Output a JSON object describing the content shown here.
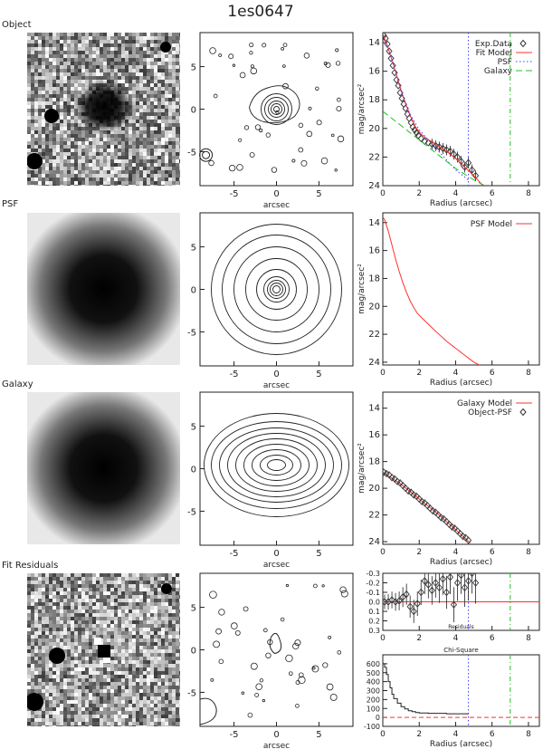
{
  "figure_title": "1es0647",
  "panels": [
    {
      "label": "Object"
    },
    {
      "label": "PSF"
    },
    {
      "label": "Galaxy"
    },
    {
      "label": "Fit Residuals"
    }
  ],
  "contour_axis": {
    "xlabel": "arcsec",
    "ticks": [
      -5,
      0,
      5
    ]
  },
  "colors": {
    "model": "#ff3030",
    "psf_line": "#4040ff",
    "galaxy_line": "#20c020",
    "data_marker": "#333333"
  },
  "chart_data": [
    {
      "type": "scatter",
      "id": "object-profile",
      "xlabel": "Radius (arcsec)",
      "ylabel": "mag/arcsec²",
      "xlim": [
        0,
        8.6
      ],
      "ylim": [
        24,
        13.3
      ],
      "xticks": [
        0,
        2,
        4,
        6,
        8
      ],
      "yticks": [
        14,
        16,
        18,
        20,
        22,
        24
      ],
      "legend_position": "top-right",
      "series": [
        {
          "name": "Exp.Data",
          "style": "diamond",
          "x": [
            0.05,
            0.15,
            0.25,
            0.35,
            0.45,
            0.55,
            0.65,
            0.75,
            0.85,
            0.95,
            1.05,
            1.15,
            1.25,
            1.35,
            1.45,
            1.55,
            1.65,
            1.75,
            1.85,
            1.95,
            2.1,
            2.3,
            2.5,
            2.7,
            2.9,
            3.1,
            3.3,
            3.5,
            3.7,
            3.9,
            4.1,
            4.3,
            4.5,
            4.7,
            4.9,
            5.1
          ],
          "y": [
            13.5,
            13.7,
            14.1,
            14.6,
            15.1,
            15.6,
            16.1,
            16.6,
            17.0,
            17.5,
            17.9,
            18.3,
            18.6,
            19.0,
            19.3,
            19.6,
            19.9,
            20.1,
            20.3,
            20.5,
            20.7,
            20.9,
            21.0,
            21.1,
            21.2,
            21.3,
            21.4,
            21.5,
            21.6,
            21.8,
            22.0,
            22.3,
            22.7,
            22.4,
            22.9,
            23.3
          ]
        },
        {
          "name": "Fit Model",
          "style": "solid",
          "x": [
            0,
            0.3,
            0.6,
            0.9,
            1.2,
            1.5,
            1.8,
            2.1,
            2.4,
            2.7,
            3.0,
            3.5,
            4.0,
            4.5,
            5.0,
            5.5
          ],
          "y": [
            13.4,
            14.4,
            15.6,
            16.9,
            18.1,
            19.1,
            19.9,
            20.4,
            20.7,
            20.95,
            21.2,
            21.6,
            22.1,
            22.7,
            23.3,
            24.0
          ]
        },
        {
          "name": "PSF",
          "style": "dotted",
          "x": [
            0,
            0.5,
            1.0,
            1.5,
            2.0,
            2.5,
            3.0,
            3.5,
            4.0,
            4.7
          ],
          "y": [
            13.5,
            15.2,
            17.4,
            19.0,
            20.1,
            20.8,
            21.5,
            22.2,
            22.9,
            23.6
          ]
        },
        {
          "name": "Galaxy",
          "style": "dashed",
          "x": [
            0,
            1,
            2,
            3,
            4,
            5,
            5.6
          ],
          "y": [
            18.8,
            19.8,
            20.8,
            21.8,
            22.8,
            23.6,
            24.0
          ]
        }
      ],
      "vlines": [
        {
          "x": 4.7,
          "style": "dotted"
        },
        {
          "x": 7.0,
          "style": "dashdot"
        }
      ]
    },
    {
      "type": "line",
      "id": "psf-profile",
      "xlabel": "Radius (arcsec)",
      "ylabel": "mag/arcsec²",
      "xlim": [
        0,
        8.6
      ],
      "ylim": [
        24.2,
        13.3
      ],
      "xticks": [
        0,
        2,
        4,
        6,
        8
      ],
      "yticks": [
        14,
        16,
        18,
        20,
        22,
        24
      ],
      "legend_position": "top-right",
      "series": [
        {
          "name": "PSF Model",
          "style": "solid",
          "x": [
            0,
            0.1,
            0.3,
            0.5,
            0.7,
            0.9,
            1.1,
            1.3,
            1.5,
            1.7,
            1.9,
            2.2,
            2.6,
            3.0,
            3.5,
            4.0,
            4.5,
            5.0,
            5.3
          ],
          "y": [
            13.6,
            13.8,
            14.6,
            15.6,
            16.6,
            17.5,
            18.3,
            19.0,
            19.6,
            20.1,
            20.5,
            20.9,
            21.4,
            21.9,
            22.5,
            23.0,
            23.5,
            24.0,
            24.2
          ]
        }
      ]
    },
    {
      "type": "scatter",
      "id": "galaxy-profile",
      "xlabel": "Radius (arcsec)",
      "ylabel": "mag/arcsec²",
      "xlim": [
        0,
        8.6
      ],
      "ylim": [
        24.2,
        12.8
      ],
      "xticks": [
        0,
        2,
        4,
        6,
        8
      ],
      "yticks": [
        14,
        16,
        18,
        20,
        22,
        24
      ],
      "legend_position": "top-right",
      "series": [
        {
          "name": "Galaxy Model",
          "style": "solid",
          "x": [
            0,
            1,
            2,
            3,
            4,
            4.8
          ],
          "y": [
            18.8,
            19.7,
            20.8,
            21.9,
            23.1,
            24.1
          ]
        },
        {
          "name": "Object-PSF",
          "style": "diamond",
          "x": [
            0.05,
            0.2,
            0.35,
            0.5,
            0.65,
            0.8,
            0.95,
            1.1,
            1.25,
            1.4,
            1.55,
            1.7,
            1.85,
            2.0,
            2.15,
            2.3,
            2.45,
            2.6,
            2.75,
            2.9,
            3.05,
            3.2,
            3.35,
            3.5,
            3.65,
            3.8,
            3.95,
            4.1,
            4.25,
            4.4,
            4.55,
            4.7
          ],
          "y": [
            18.8,
            18.9,
            19.0,
            19.2,
            19.3,
            19.5,
            19.6,
            19.8,
            20.0,
            20.2,
            20.3,
            20.5,
            20.6,
            20.8,
            21.0,
            21.1,
            21.3,
            21.5,
            21.7,
            21.8,
            22.0,
            22.2,
            22.3,
            22.5,
            22.7,
            22.9,
            23.0,
            23.2,
            23.4,
            23.6,
            23.7,
            23.9
          ]
        }
      ]
    },
    {
      "type": "scatter",
      "id": "residuals",
      "xlim": [
        0,
        8.6
      ],
      "ylim": [
        0.3,
        -0.3
      ],
      "xticks": [
        0,
        2,
        4,
        6,
        8
      ],
      "yticks": [
        -0.3,
        -0.2,
        -0.1,
        0.0,
        0.1,
        0.2,
        0.3
      ],
      "ytick_labels": [
        "-0.3",
        "-0.2",
        "-0.1",
        "0.0",
        "0.1",
        "0.2",
        "0.3"
      ],
      "inner_label": "Residuals",
      "series": [
        {
          "name": "",
          "style": "diamond",
          "x": [
            0.1,
            0.3,
            0.5,
            0.7,
            0.9,
            1.1,
            1.3,
            1.5,
            1.7,
            1.9,
            2.1,
            2.3,
            2.5,
            2.7,
            2.9,
            3.1,
            3.3,
            3.5,
            3.7,
            3.9,
            4.1,
            4.3,
            4.5,
            4.7,
            4.9,
            5.1
          ],
          "y": [
            0.0,
            0.0,
            -0.02,
            0.0,
            -0.01,
            -0.05,
            -0.08,
            0.05,
            0.1,
            0.02,
            -0.1,
            -0.22,
            -0.18,
            -0.12,
            -0.2,
            -0.15,
            -0.24,
            -0.1,
            -0.26,
            0.03,
            -0.2,
            -0.28,
            -0.15,
            -0.22,
            -0.3,
            -0.2
          ]
        }
      ],
      "hlines": [
        {
          "y": 0.0,
          "style": "solid"
        }
      ],
      "vlines": [
        {
          "x": 4.7,
          "style": "dotted"
        },
        {
          "x": 7.0,
          "style": "dashdot"
        }
      ]
    },
    {
      "type": "line",
      "id": "chi-square",
      "title": "Chi-Square",
      "xlabel": "Radius (arcsec)",
      "xlim": [
        0,
        8.6
      ],
      "ylim": [
        -100,
        700
      ],
      "xticks": [
        0,
        2,
        4,
        6,
        8
      ],
      "yticks": [
        -100,
        0,
        100,
        200,
        300,
        400,
        500,
        600
      ],
      "series": [
        {
          "name": "",
          "style": "step",
          "x": [
            0,
            0.1,
            0.2,
            0.3,
            0.4,
            0.5,
            0.6,
            0.8,
            1.0,
            1.2,
            1.4,
            1.6,
            1.8,
            2.0,
            2.5,
            3.0,
            3.5,
            4.0,
            4.7
          ],
          "y": [
            600,
            560,
            480,
            400,
            330,
            260,
            210,
            160,
            120,
            95,
            75,
            65,
            55,
            50,
            45,
            45,
            40,
            40,
            38
          ]
        }
      ],
      "hlines": [
        {
          "y": 0,
          "style": "dashed"
        }
      ],
      "vlines": [
        {
          "x": 4.7,
          "style": "dotted"
        },
        {
          "x": 7.0,
          "style": "dashdot"
        }
      ]
    }
  ]
}
